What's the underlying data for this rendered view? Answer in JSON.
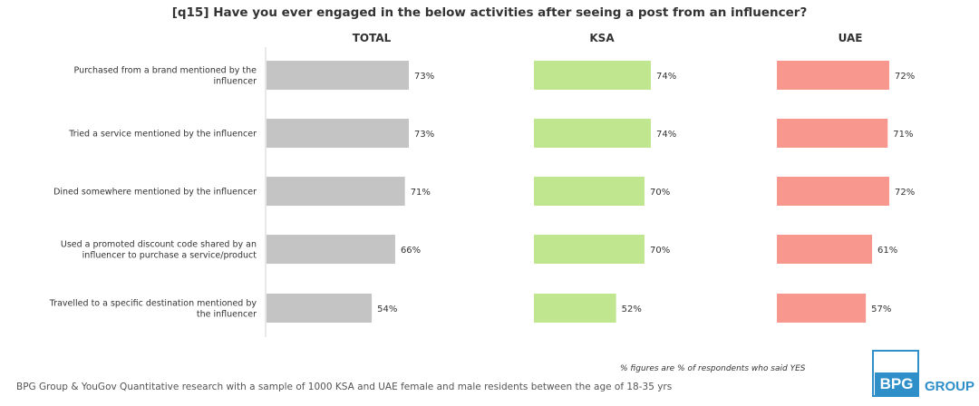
{
  "chart_data": {
    "type": "bar",
    "orientation": "horizontal",
    "title": "[q15] Have you ever engaged in the below activities after seeing a post from an influencer?",
    "categories": [
      "Purchased from a brand mentioned by the influencer",
      "Tried a service mentioned by the influencer",
      "Dined somewhere mentioned by the influencer",
      "Used a promoted discount code shared by an influencer to purchase a service/product",
      "Travelled to a specific destination mentioned by the influencer"
    ],
    "series": [
      {
        "name": "TOTAL",
        "values": [
          73,
          73,
          71,
          66,
          54
        ],
        "labels": [
          "73%",
          "73%",
          "71%",
          "66%",
          "54%"
        ],
        "color": "#c4c4c4"
      },
      {
        "name": "KSA",
        "values": [
          74,
          74,
          70,
          70,
          52
        ],
        "labels": [
          "74%",
          "74%",
          "70%",
          "70%",
          "52%"
        ],
        "color": "#c1e690"
      },
      {
        "name": "UAE",
        "values": [
          72,
          71,
          72,
          61,
          57
        ],
        "labels": [
          "72%",
          "71%",
          "72%",
          "61%",
          "57%"
        ],
        "color": "#f8978e"
      }
    ],
    "xlim": [
      0,
      100
    ],
    "grid": false,
    "legend": "none"
  },
  "footnote": "% figures are % of respondents who said YES",
  "source": "BPG Group & YouGov Quantitative research with a sample of 1000 KSA and UAE female and male residents between the age of 18-35 yrs",
  "logo": {
    "mark": "BPG",
    "word": "GROUP"
  }
}
